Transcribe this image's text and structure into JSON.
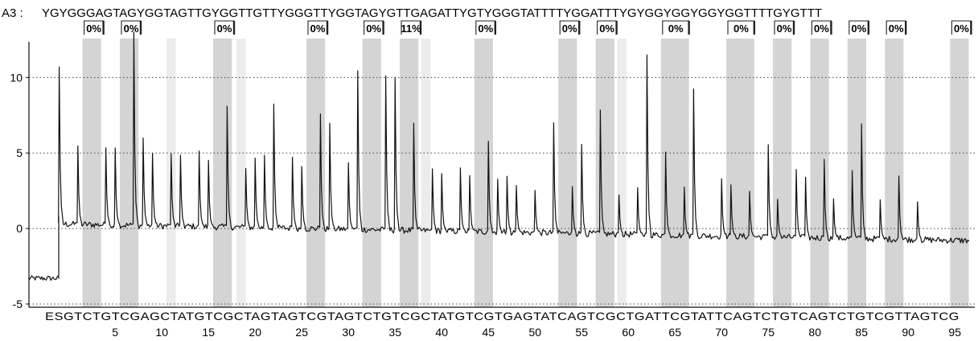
{
  "sample_label": "A3 :",
  "sequence": "YGYGGGAGTAGYGGTAGTTGYGGTTGTTYGGGTTYGGTAGYGTTGAGATTYGTYGGGTATTTTYGGATTTYGYGGYGGYGGYGGTTTTGYGTTT",
  "chart_data": {
    "type": "line",
    "title": "",
    "xlabel": "",
    "ylabel": "",
    "ylim": [
      -5,
      13
    ],
    "yticks": [
      -5,
      0,
      5,
      10
    ],
    "grid": "dotted-horizontal",
    "x_tick_labels": [
      "5",
      "10",
      "15",
      "20",
      "25",
      "30",
      "35",
      "40",
      "45",
      "50",
      "55",
      "60",
      "65",
      "70",
      "75",
      "80",
      "85",
      "90",
      "95"
    ],
    "x_tick_positions": [
      5,
      10,
      15,
      20,
      25,
      30,
      35,
      40,
      45,
      50,
      55,
      60,
      65,
      70,
      75,
      80,
      85,
      90,
      95
    ],
    "dispensation_order": "ESGTCTGTCGAGCTATGTCGCTAGTAGTCGTAGTCTGTCGCTATGTCGTGAGTATCAGTCGCTGATTCGTATTCAGTCTGTCAGTCTGTCGTTAGTCG",
    "baseline": {
      "start": -3.3,
      "after_enzyme": 0.3,
      "end": -0.8
    },
    "peaks": [
      {
        "pos": 1,
        "height": 10.4
      },
      {
        "pos": 3,
        "height": 5.2
      },
      {
        "pos": 6,
        "height": 5.1
      },
      {
        "pos": 7,
        "height": 5.1
      },
      {
        "pos": 9,
        "height": 12.8
      },
      {
        "pos": 10,
        "height": 5.8
      },
      {
        "pos": 11,
        "height": 4.8
      },
      {
        "pos": 13,
        "height": 4.8
      },
      {
        "pos": 14,
        "height": 4.7
      },
      {
        "pos": 16,
        "height": 5.0
      },
      {
        "pos": 17,
        "height": 4.4
      },
      {
        "pos": 19,
        "height": 8.0
      },
      {
        "pos": 21,
        "height": 3.9
      },
      {
        "pos": 22,
        "height": 4.6
      },
      {
        "pos": 23,
        "height": 4.8
      },
      {
        "pos": 24,
        "height": 8.2
      },
      {
        "pos": 26,
        "height": 4.7
      },
      {
        "pos": 27,
        "height": 4.1
      },
      {
        "pos": 29,
        "height": 7.6
      },
      {
        "pos": 30,
        "height": 7.0
      },
      {
        "pos": 32,
        "height": 4.4
      },
      {
        "pos": 33,
        "height": 10.5
      },
      {
        "pos": 36,
        "height": 10.2
      },
      {
        "pos": 37,
        "height": 10.1
      },
      {
        "pos": 39,
        "height": 7.1
      },
      {
        "pos": 41,
        "height": 4.1
      },
      {
        "pos": 42,
        "height": 3.8
      },
      {
        "pos": 44,
        "height": 4.2
      },
      {
        "pos": 45,
        "height": 3.7
      },
      {
        "pos": 47,
        "height": 6.0
      },
      {
        "pos": 48,
        "height": 3.5
      },
      {
        "pos": 49,
        "height": 3.7
      },
      {
        "pos": 50,
        "height": 3.1
      },
      {
        "pos": 52,
        "height": 2.8
      },
      {
        "pos": 54,
        "height": 7.3
      },
      {
        "pos": 56,
        "height": 3.1
      },
      {
        "pos": 57,
        "height": 5.9
      },
      {
        "pos": 59,
        "height": 8.2
      },
      {
        "pos": 61,
        "height": 2.6
      },
      {
        "pos": 63,
        "height": 3.1
      },
      {
        "pos": 64,
        "height": 11.9
      },
      {
        "pos": 66,
        "height": 5.5
      },
      {
        "pos": 68,
        "height": 3.2
      },
      {
        "pos": 69,
        "height": 9.7
      },
      {
        "pos": 72,
        "height": 3.8
      },
      {
        "pos": 73,
        "height": 3.4
      },
      {
        "pos": 75,
        "height": 3.0
      },
      {
        "pos": 77,
        "height": 6.1
      },
      {
        "pos": 78,
        "height": 2.5
      },
      {
        "pos": 80,
        "height": 4.5
      },
      {
        "pos": 81,
        "height": 4.0
      },
      {
        "pos": 83,
        "height": 5.2
      },
      {
        "pos": 84,
        "height": 2.6
      },
      {
        "pos": 86,
        "height": 4.5
      },
      {
        "pos": 87,
        "height": 7.6
      },
      {
        "pos": 89,
        "height": 2.6
      },
      {
        "pos": 91,
        "height": 4.2
      },
      {
        "pos": 93,
        "height": 2.5
      }
    ],
    "cpg_regions": [
      {
        "start": 3.5,
        "end": 5.5,
        "label": "0%"
      },
      {
        "start": 7.5,
        "end": 9.5,
        "label": "0%"
      },
      {
        "start": 17.5,
        "end": 19.5,
        "label": "0%"
      },
      {
        "start": 27.5,
        "end": 29.5,
        "label": "0%"
      },
      {
        "start": 33.5,
        "end": 35.5,
        "label": "0%"
      },
      {
        "start": 37.5,
        "end": 39.5,
        "label": "11%"
      },
      {
        "start": 45.5,
        "end": 47.5,
        "label": "0%"
      },
      {
        "start": 54.5,
        "end": 56.5,
        "label": "0%"
      },
      {
        "start": 58.5,
        "end": 60.5,
        "label": "0%"
      },
      {
        "start": 65.5,
        "end": 68.5,
        "label": "0%"
      },
      {
        "start": 72.5,
        "end": 75.5,
        "label": "0%"
      },
      {
        "start": 77.5,
        "end": 79.5,
        "label": "0%"
      },
      {
        "start": 81.5,
        "end": 83.5,
        "label": "0%"
      },
      {
        "start": 85.5,
        "end": 87.5,
        "label": "0%"
      },
      {
        "start": 89.5,
        "end": 91.5,
        "label": "0%"
      },
      {
        "start": 96.5,
        "end": 98.5,
        "label": "0%"
      }
    ],
    "control_regions": [
      {
        "start": 12.5,
        "end": 13.5
      },
      {
        "start": 20.0,
        "end": 21.0
      },
      {
        "start": 39.8,
        "end": 40.8
      },
      {
        "start": 60.8,
        "end": 61.8
      }
    ],
    "colors": {
      "trace": "#111111",
      "cpg_shade": "#d4d4d4",
      "control_shade": "#ececec",
      "label_box_border": "#222222",
      "grid": "#444444"
    }
  }
}
